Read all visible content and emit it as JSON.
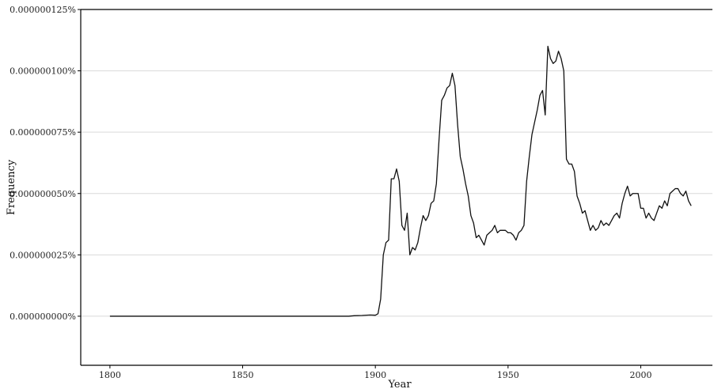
{
  "chart_data": {
    "type": "line",
    "title": "",
    "xlabel": "Year",
    "ylabel": "Frequency",
    "xlim": [
      1789,
      2027
    ],
    "ylim": [
      -2e-10,
      1.25e-09
    ],
    "x_ticks": [
      1800,
      1850,
      1900,
      1950,
      2000
    ],
    "x_tick_labels": [
      "1800",
      "1850",
      "1900",
      "1950",
      "2000"
    ],
    "y_ticks": [
      0,
      2.5e-10,
      5e-10,
      7.5e-10,
      1e-09,
      1.25e-09
    ],
    "y_tick_labels": [
      "0.000000000%",
      "0.000000025%",
      "0.000000050%",
      "0.000000075%",
      "0.000000100%",
      "0.000000125%"
    ],
    "grid": "horizontal",
    "colors": {
      "line": "#111111",
      "grid": "#d9d9d9",
      "axis": "#000000"
    },
    "series": [
      {
        "x": [
          1800,
          1850,
          1890,
          1892,
          1895,
          1898,
          1900,
          1901,
          1902,
          1903,
          1904,
          1905,
          1906,
          1907,
          1908,
          1909,
          1910,
          1911,
          1912,
          1913,
          1914,
          1915,
          1916,
          1917,
          1918,
          1919,
          1920,
          1921,
          1922,
          1923,
          1924,
          1925,
          1926,
          1927,
          1928,
          1929,
          1930,
          1931,
          1932,
          1933,
          1934,
          1935,
          1936,
          1937,
          1938,
          1939,
          1940,
          1941,
          1942,
          1943,
          1944,
          1945,
          1946,
          1947,
          1948,
          1949,
          1950,
          1951,
          1952,
          1953,
          1954,
          1955,
          1956,
          1957,
          1958,
          1959,
          1960,
          1961,
          1962,
          1963,
          1964,
          1965,
          1966,
          1967,
          1968,
          1969,
          1970,
          1971,
          1972,
          1973,
          1974,
          1975,
          1976,
          1977,
          1978,
          1979,
          1980,
          1981,
          1982,
          1983,
          1984,
          1985,
          1986,
          1987,
          1988,
          1989,
          1990,
          1991,
          1992,
          1993,
          1994,
          1995,
          1996,
          1997,
          1998,
          1999,
          2000,
          2001,
          2002,
          2003,
          2004,
          2005,
          2006,
          2007,
          2008,
          2009,
          2010,
          2011,
          2012,
          2013,
          2014,
          2015,
          2016,
          2017,
          2018,
          2019
        ],
        "y": [
          0,
          0,
          0,
          2e-12,
          3e-12,
          5e-12,
          4e-12,
          1e-11,
          7e-11,
          2.5e-10,
          3e-10,
          3.1e-10,
          5.6e-10,
          5.6e-10,
          6e-10,
          5.5e-10,
          3.7e-10,
          3.5e-10,
          4.2e-10,
          2.5e-10,
          2.8e-10,
          2.7e-10,
          3e-10,
          3.6e-10,
          4.1e-10,
          3.9e-10,
          4.1e-10,
          4.6e-10,
          4.7e-10,
          5.4e-10,
          7.2e-10,
          8.8e-10,
          9e-10,
          9.3e-10,
          9.4e-10,
          9.9e-10,
          9.4e-10,
          7.8e-10,
          6.5e-10,
          6e-10,
          5.4e-10,
          4.9e-10,
          4.1e-10,
          3.8e-10,
          3.2e-10,
          3.3e-10,
          3.1e-10,
          2.9e-10,
          3.3e-10,
          3.4e-10,
          3.5e-10,
          3.7e-10,
          3.4e-10,
          3.5e-10,
          3.5e-10,
          3.5e-10,
          3.4e-10,
          3.4e-10,
          3.3e-10,
          3.1e-10,
          3.4e-10,
          3.5e-10,
          3.7e-10,
          5.5e-10,
          6.5e-10,
          7.4e-10,
          7.9e-10,
          8.4e-10,
          9e-10,
          9.2e-10,
          8.2e-10,
          1.1e-09,
          1.05e-09,
          1.03e-09,
          1.04e-09,
          1.08e-09,
          1.05e-09,
          1e-09,
          6.4e-10,
          6.2e-10,
          6.2e-10,
          5.9e-10,
          4.9e-10,
          4.6e-10,
          4.2e-10,
          4.3e-10,
          3.9e-10,
          3.5e-10,
          3.7e-10,
          3.5e-10,
          3.6e-10,
          3.9e-10,
          3.7e-10,
          3.8e-10,
          3.7e-10,
          3.9e-10,
          4.1e-10,
          4.2e-10,
          4e-10,
          4.6e-10,
          5e-10,
          5.3e-10,
          4.9e-10,
          5e-10,
          5e-10,
          5e-10,
          4.4e-10,
          4.4e-10,
          4e-10,
          4.2e-10,
          4e-10,
          3.9e-10,
          4.2e-10,
          4.5e-10,
          4.4e-10,
          4.7e-10,
          4.5e-10,
          5e-10,
          5.1e-10,
          5.2e-10,
          5.2e-10,
          5e-10,
          4.9e-10,
          5.1e-10,
          4.7e-10,
          4.5e-10
        ]
      }
    ]
  }
}
